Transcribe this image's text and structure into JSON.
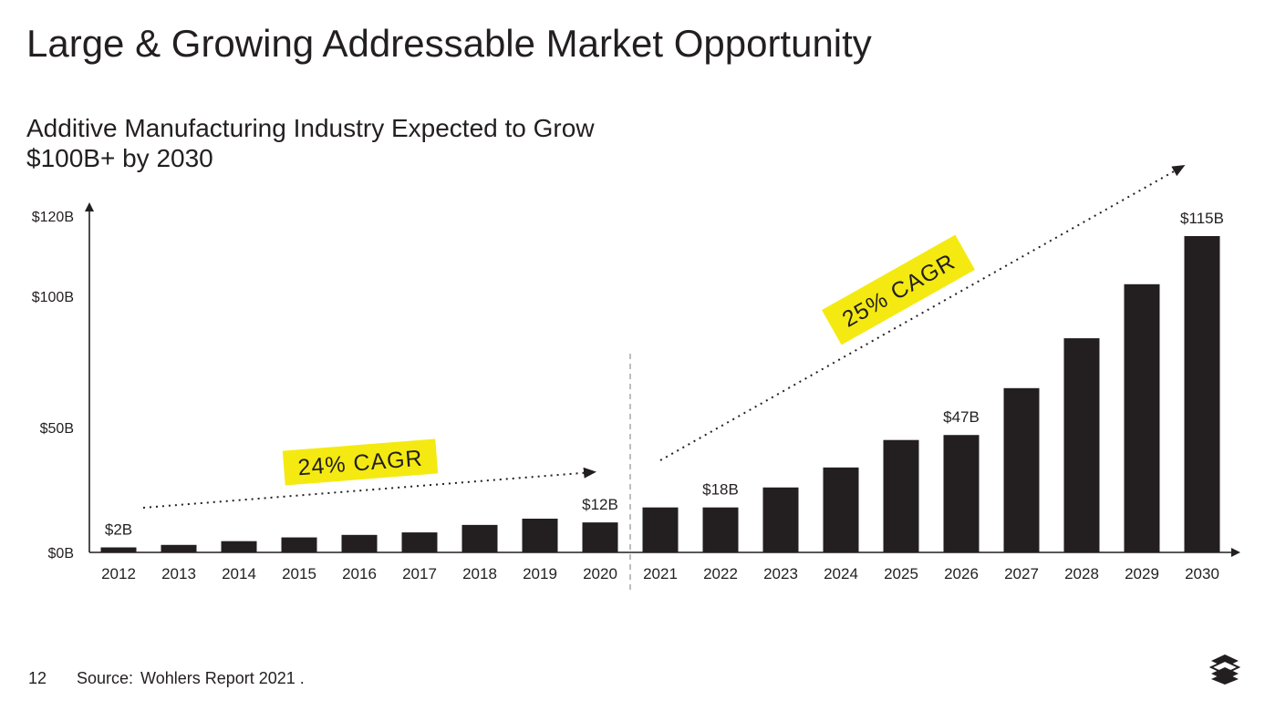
{
  "slide": {
    "title": "Large & Growing Addressable Market Opportunity",
    "subtitle_line1": "Additive Manufacturing Industry Expected to Grow",
    "subtitle_line2": "$100B+ by 2030",
    "page_number": "12",
    "source_label": "Source:",
    "source_text": "Wohlers Report 2021 ."
  },
  "chart_data": {
    "type": "bar",
    "categories": [
      "2012",
      "2013",
      "2014",
      "2015",
      "2016",
      "2017",
      "2018",
      "2019",
      "2020",
      "2021",
      "2022",
      "2023",
      "2024",
      "2025",
      "2026",
      "2027",
      "2028",
      "2029",
      "2030"
    ],
    "values": [
      2,
      3,
      4.5,
      6,
      7,
      8,
      11,
      13.5,
      12,
      18,
      18,
      26,
      34,
      45,
      47,
      65,
      84,
      103,
      115
    ],
    "y_ticks": [
      {
        "value": 0,
        "label": "$0B"
      },
      {
        "value": 50,
        "label": "$50B"
      },
      {
        "value": 100,
        "label": "$100B"
      },
      {
        "value": 120,
        "label": "$120B"
      }
    ],
    "data_labels": [
      {
        "category": "2012",
        "text": "$2B"
      },
      {
        "category": "2020",
        "text": "$12B"
      },
      {
        "category": "2022",
        "text": "$18B"
      },
      {
        "category": "2026",
        "text": "$47B"
      },
      {
        "category": "2030",
        "text": "$115B"
      }
    ],
    "annotations": [
      {
        "text": "24% CAGR",
        "from": "2012",
        "to": "2020"
      },
      {
        "text": "25% CAGR",
        "from": "2021",
        "to": "2030"
      }
    ],
    "divider_between": [
      "2020",
      "2021"
    ],
    "ylim": [
      0,
      120
    ],
    "bar_color": "#231f20",
    "highlight_color": "#f4ea12",
    "grid": false
  }
}
